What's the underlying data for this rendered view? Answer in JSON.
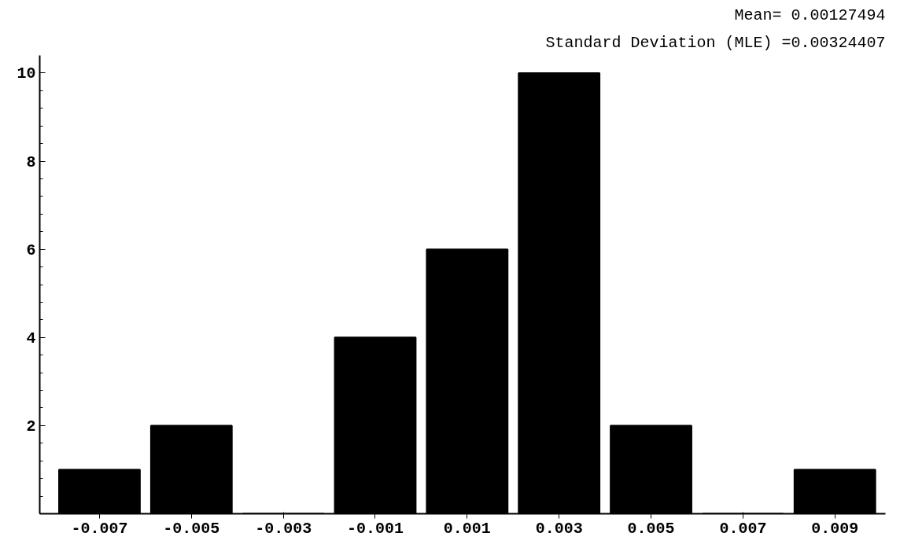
{
  "chart_data": {
    "type": "bar",
    "categories": [
      "-0.007",
      "-0.005",
      "-0.003",
      "-0.001",
      "0.001",
      "0.003",
      "0.005",
      "0.007",
      "0.009"
    ],
    "values": [
      1,
      2,
      0,
      4,
      6,
      10,
      2,
      0,
      1
    ],
    "color": "#000000",
    "ylim": [
      0,
      10.4
    ],
    "yticks": [
      2,
      4,
      6,
      8,
      10
    ],
    "grid": false,
    "annotations": [
      "Mean= 0.00127494",
      "Standard Deviation (MLE) =0.00324407"
    ]
  }
}
